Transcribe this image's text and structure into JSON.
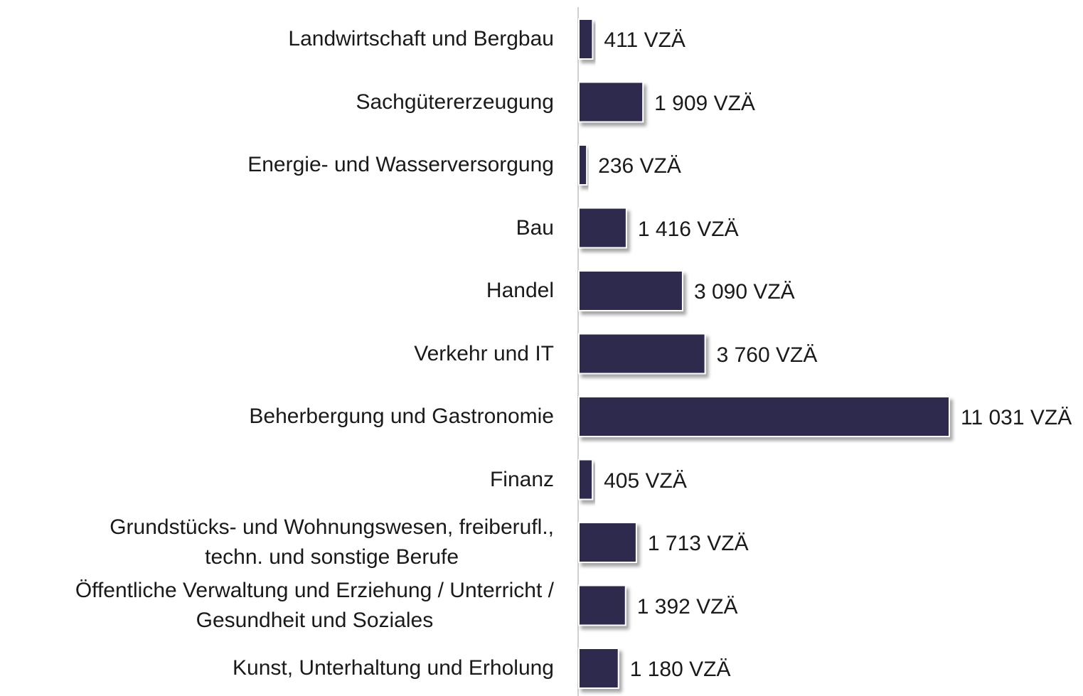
{
  "chart_data": {
    "type": "bar",
    "orientation": "horizontal",
    "categories": [
      "Landwirtschaft und Bergbau",
      "Sachgütererzeugung",
      "Energie- und Wasserversorgung",
      "Bau",
      "Handel",
      "Verkehr und IT",
      "Beherbergung und Gastronomie",
      "Finanz",
      "Grundstücks- und Wohnungswesen, freiberufl.,\ntechn. und sonstige Berufe",
      "Öffentliche Verwaltung und Erziehung / Unterricht /\nGesundheit und Soziales",
      "Kunst, Unterhaltung und Erholung"
    ],
    "values": [
      411,
      1909,
      236,
      1416,
      3090,
      3760,
      11031,
      405,
      1713,
      1392,
      1180
    ],
    "value_labels": [
      "411 VZÄ",
      "1 909 VZÄ",
      "236 VZÄ",
      "1 416 VZÄ",
      "3 090 VZÄ",
      "3 760 VZÄ",
      "11 031 VZÄ",
      "405 VZÄ",
      "1 713 VZÄ",
      "1 392 VZÄ",
      "1 180 VZÄ"
    ],
    "color": "#2e2c4e"
  }
}
